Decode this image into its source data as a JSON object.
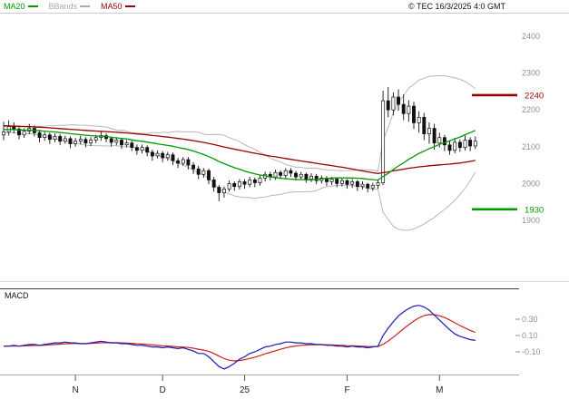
{
  "header": {
    "legend": [
      {
        "name": "ma20",
        "label": "MA20",
        "color": "#009900"
      },
      {
        "name": "bbands",
        "label": "BBands",
        "color": "#aaaaaa"
      },
      {
        "name": "ma50",
        "label": "MA50",
        "color": "#990000"
      }
    ],
    "copyright": "© TEC 16/3/2025 4:0 GMT"
  },
  "chart_data": {
    "type": "candlestick",
    "title": "",
    "ohlc_format": "[open, high, low, close]",
    "price_axis": {
      "ticks": [
        2400,
        2300,
        2200,
        2100,
        2000,
        1900
      ],
      "min": 1850,
      "max": 2450,
      "tick_color": "#909090"
    },
    "levels": [
      {
        "value": 2240,
        "label": "2240",
        "color": "#990000"
      },
      {
        "value": 1930,
        "label": "1930",
        "color": "#009900"
      }
    ],
    "months": [
      {
        "label": "N",
        "index": 14
      },
      {
        "label": "D",
        "index": 31
      },
      {
        "label": "25",
        "index": 47
      },
      {
        "label": "F",
        "index": 67
      },
      {
        "label": "M",
        "index": 85
      }
    ],
    "indicators": {
      "ma_short_period": 20,
      "ma_long_period": 50,
      "bollinger_period": 20,
      "bollinger_k": 2,
      "ma_short_color": "#009900",
      "ma_long_color": "#990000",
      "bollinger_color": "#b8b8b8"
    },
    "candles": [
      [
        2132,
        2168,
        2118,
        2140
      ],
      [
        2140,
        2172,
        2130,
        2155
      ],
      [
        2155,
        2166,
        2136,
        2148
      ],
      [
        2148,
        2156,
        2120,
        2132
      ],
      [
        2132,
        2150,
        2124,
        2142
      ],
      [
        2142,
        2162,
        2134,
        2150
      ],
      [
        2150,
        2158,
        2128,
        2138
      ],
      [
        2138,
        2146,
        2112,
        2125
      ],
      [
        2125,
        2140,
        2116,
        2132
      ],
      [
        2132,
        2138,
        2108,
        2120
      ],
      [
        2120,
        2136,
        2112,
        2128
      ],
      [
        2128,
        2134,
        2104,
        2115
      ],
      [
        2115,
        2130,
        2108,
        2122
      ],
      [
        2122,
        2128,
        2096,
        2108
      ],
      [
        2108,
        2124,
        2100,
        2115
      ],
      [
        2115,
        2130,
        2106,
        2120
      ],
      [
        2120,
        2126,
        2098,
        2110
      ],
      [
        2110,
        2126,
        2102,
        2118
      ],
      [
        2118,
        2132,
        2110,
        2125
      ],
      [
        2125,
        2140,
        2116,
        2130
      ],
      [
        2130,
        2136,
        2112,
        2122
      ],
      [
        2122,
        2128,
        2100,
        2112
      ],
      [
        2112,
        2126,
        2104,
        2118
      ],
      [
        2118,
        2124,
        2094,
        2105
      ],
      [
        2105,
        2118,
        2098,
        2110
      ],
      [
        2110,
        2116,
        2088,
        2098
      ],
      [
        2098,
        2106,
        2078,
        2090
      ],
      [
        2090,
        2106,
        2082,
        2098
      ],
      [
        2098,
        2104,
        2074,
        2085
      ],
      [
        2085,
        2092,
        2062,
        2075
      ],
      [
        2075,
        2090,
        2068,
        2082
      ],
      [
        2082,
        2088,
        2058,
        2070
      ],
      [
        2070,
        2086,
        2062,
        2078
      ],
      [
        2078,
        2084,
        2050,
        2062
      ],
      [
        2062,
        2070,
        2042,
        2055
      ],
      [
        2055,
        2072,
        2048,
        2065
      ],
      [
        2065,
        2072,
        2038,
        2050
      ],
      [
        2050,
        2058,
        2026,
        2040
      ],
      [
        2040,
        2048,
        2012,
        2025
      ],
      [
        2025,
        2042,
        2016,
        2035
      ],
      [
        2035,
        2040,
        1998,
        2010
      ],
      [
        2010,
        2018,
        1978,
        1990
      ],
      [
        1990,
        1996,
        1952,
        1975
      ],
      [
        1975,
        1992,
        1962,
        1985
      ],
      [
        1985,
        2008,
        1978,
        2000
      ],
      [
        2000,
        2006,
        1980,
        1992
      ],
      [
        1992,
        2012,
        1984,
        2005
      ],
      [
        2005,
        2012,
        1986,
        1998
      ],
      [
        1998,
        2018,
        1990,
        2010
      ],
      [
        2010,
        2016,
        1990,
        2002
      ],
      [
        2002,
        2022,
        1994,
        2015
      ],
      [
        2015,
        2032,
        2006,
        2025
      ],
      [
        2025,
        2032,
        2008,
        2018
      ],
      [
        2018,
        2038,
        2010,
        2030
      ],
      [
        2030,
        2036,
        2012,
        2022
      ],
      [
        2022,
        2042,
        2014,
        2035
      ],
      [
        2035,
        2042,
        2018,
        2028
      ],
      [
        2028,
        2034,
        2008,
        2018
      ],
      [
        2018,
        2032,
        2010,
        2025
      ],
      [
        2025,
        2030,
        2002,
        2012
      ],
      [
        2012,
        2028,
        2004,
        2020
      ],
      [
        2020,
        2026,
        1998,
        2008
      ],
      [
        2008,
        2022,
        2000,
        2015
      ],
      [
        2015,
        2020,
        1994,
        2005
      ],
      [
        2005,
        2018,
        1996,
        2012
      ],
      [
        2012,
        2016,
        1990,
        2000
      ],
      [
        2000,
        2014,
        1992,
        2008
      ],
      [
        2008,
        2012,
        1986,
        1998
      ],
      [
        1998,
        2012,
        1988,
        2005
      ],
      [
        2005,
        2010,
        1980,
        1992
      ],
      [
        1992,
        2006,
        1984,
        1998
      ],
      [
        1998,
        2002,
        1976,
        1988
      ],
      [
        1988,
        2002,
        1980,
        1995
      ],
      [
        1995,
        2010,
        1986,
        2002
      ],
      [
        2002,
        2252,
        1996,
        2225
      ],
      [
        2225,
        2262,
        2180,
        2200
      ],
      [
        2200,
        2248,
        2185,
        2235
      ],
      [
        2235,
        2256,
        2198,
        2215
      ],
      [
        2215,
        2242,
        2172,
        2190
      ],
      [
        2190,
        2226,
        2168,
        2210
      ],
      [
        2210,
        2222,
        2148,
        2165
      ],
      [
        2165,
        2196,
        2138,
        2180
      ],
      [
        2180,
        2192,
        2118,
        2135
      ],
      [
        2135,
        2166,
        2108,
        2150
      ],
      [
        2150,
        2162,
        2092,
        2110
      ],
      [
        2110,
        2138,
        2098,
        2125
      ],
      [
        2125,
        2132,
        2088,
        2105
      ],
      [
        2105,
        2118,
        2078,
        2090
      ],
      [
        2090,
        2124,
        2082,
        2112
      ],
      [
        2112,
        2120,
        2086,
        2098
      ],
      [
        2098,
        2130,
        2090,
        2118
      ],
      [
        2118,
        2126,
        2088,
        2102
      ],
      [
        2102,
        2128,
        2094,
        2115
      ]
    ],
    "macd": {
      "label": "MACD",
      "ticks": [
        {
          "value": 0.3,
          "label": "0.30"
        },
        {
          "value": 0.1,
          "label": "0.10"
        },
        {
          "value": -0.1,
          "label": "-0.10"
        }
      ],
      "line_color": "#1a1aae",
      "signal_color": "#cc2020",
      "signal_period": 9,
      "line": [
        -0.03,
        -0.03,
        -0.02,
        -0.03,
        -0.02,
        -0.01,
        -0.01,
        -0.02,
        -0.01,
        0.0,
        0.01,
        0.01,
        0.02,
        0.01,
        0.01,
        0.0,
        0.0,
        0.01,
        0.02,
        0.03,
        0.02,
        0.01,
        0.01,
        0.0,
        0.0,
        -0.01,
        -0.02,
        -0.02,
        -0.03,
        -0.04,
        -0.04,
        -0.05,
        -0.04,
        -0.05,
        -0.06,
        -0.05,
        -0.07,
        -0.09,
        -0.12,
        -0.12,
        -0.16,
        -0.22,
        -0.28,
        -0.31,
        -0.28,
        -0.24,
        -0.19,
        -0.16,
        -0.12,
        -0.1,
        -0.07,
        -0.04,
        -0.03,
        -0.01,
        0.0,
        0.02,
        0.02,
        0.01,
        0.01,
        0.0,
        0.0,
        -0.01,
        -0.01,
        -0.02,
        -0.02,
        -0.03,
        -0.03,
        -0.04,
        -0.03,
        -0.04,
        -0.04,
        -0.05,
        -0.04,
        -0.03,
        0.1,
        0.19,
        0.27,
        0.34,
        0.39,
        0.43,
        0.46,
        0.47,
        0.45,
        0.41,
        0.35,
        0.29,
        0.23,
        0.17,
        0.12,
        0.09,
        0.07,
        0.05,
        0.04
      ]
    }
  }
}
